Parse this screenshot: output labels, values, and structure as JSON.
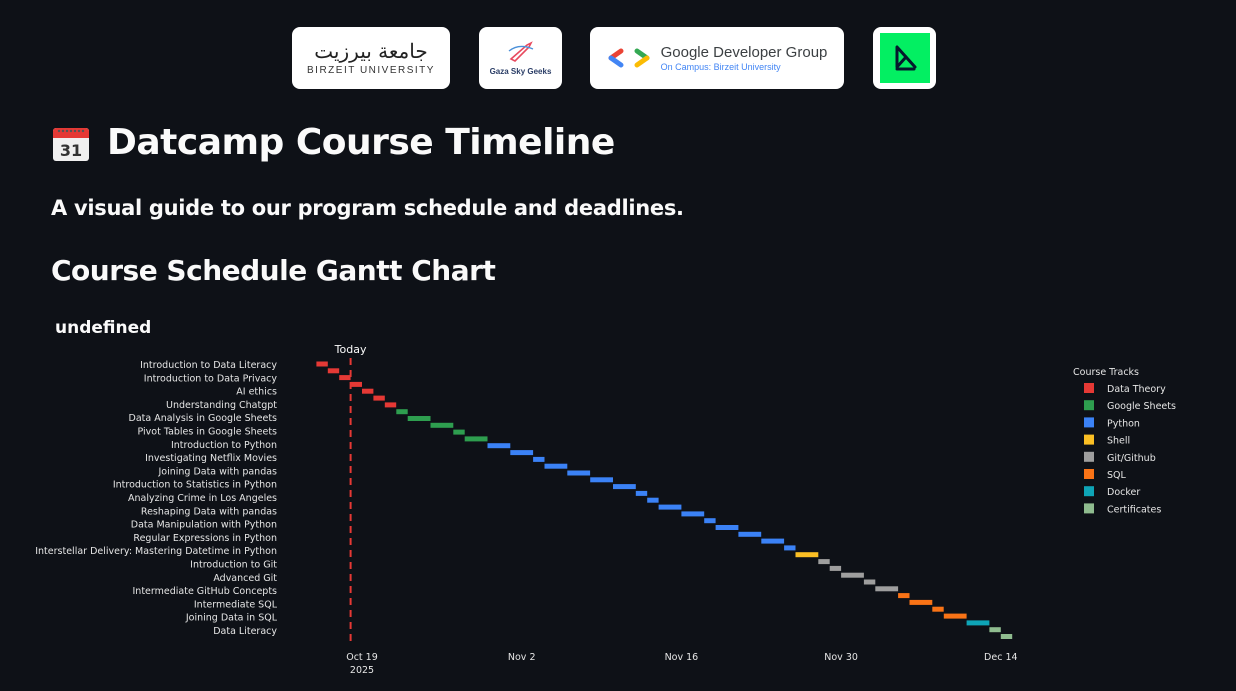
{
  "logos": {
    "birzeit": {
      "arabic": "جامعة بيرزيت",
      "english": "BIRZEIT UNIVERSITY"
    },
    "gsg": {
      "text": "Gaza Sky Geeks"
    },
    "gdg": {
      "title": "Google Developer Group",
      "subtitle": "On Campus: Birzeit University"
    },
    "datacamp": {
      "icon": "datacamp-logo-icon"
    }
  },
  "page": {
    "icon": "calendar-icon",
    "title": "Datcamp Course Timeline",
    "subtitle": "A visual guide to our program schedule and deadlines.",
    "section_heading": "Course Schedule Gantt Chart"
  },
  "colors": {
    "Data Theory": "#e53935",
    "Google Sheets": "#2e9e4f",
    "Python": "#3b82f6",
    "Shell": "#fbbf24",
    "Git/Github": "#9e9e9e",
    "SQL": "#f97316",
    "Docker": "#0ea5b7",
    "Certificates": "#8fbc8f"
  },
  "chart_data": {
    "type": "gantt",
    "title": "undefined",
    "legend_title": "Course Tracks",
    "legend_position": "right",
    "today_label": "Today",
    "today_date": "2025-10-18",
    "x_range": [
      "2025-10-14",
      "2025-12-17"
    ],
    "x_ticks": [
      {
        "date": "2025-10-19",
        "label": "Oct 19",
        "sublabel": "2025"
      },
      {
        "date": "2025-11-02",
        "label": "Nov 2",
        "sublabel": ""
      },
      {
        "date": "2025-11-16",
        "label": "Nov 16",
        "sublabel": ""
      },
      {
        "date": "2025-11-30",
        "label": "Nov 30",
        "sublabel": ""
      },
      {
        "date": "2025-12-14",
        "label": "Dec 14",
        "sublabel": ""
      }
    ],
    "y_labels": [
      "Introduction to Data Literacy",
      "Introduction to Data Privacy",
      "AI ethics",
      "Understanding Chatgpt",
      "Data Analysis in Google Sheets",
      "Pivot Tables in Google Sheets",
      "Introduction to Python",
      "Investigating Netflix Movies",
      "Joining Data with pandas",
      "Introduction to Statistics in Python",
      "Analyzing Crime in Los Angeles",
      "Reshaping Data with pandas",
      "Data Manipulation with Python",
      "Regular Expressions in Python",
      "Interstellar Delivery: Mastering Datetime in Python",
      "Introduction to Git",
      "Advanced Git",
      "Intermediate GitHub Concepts",
      "Intermediate SQL",
      "Joining Data in SQL",
      "Data Literacy"
    ],
    "tracks": [
      "Data Theory",
      "Google Sheets",
      "Python",
      "Shell",
      "Git/Github",
      "SQL",
      "Docker",
      "Certificates"
    ],
    "tasks": [
      {
        "label": "Introduction to Data Literacy",
        "track": "Data Theory",
        "start": "2025-10-15",
        "end": "2025-10-16"
      },
      {
        "label": "Introduction to Data Literacy",
        "track": "Data Theory",
        "start": "2025-10-16",
        "end": "2025-10-17"
      },
      {
        "label": "Introduction to Data Privacy",
        "track": "Data Theory",
        "start": "2025-10-17",
        "end": "2025-10-18"
      },
      {
        "label": "Introduction to Data Privacy",
        "track": "Data Theory",
        "start": "2025-10-18",
        "end": "2025-10-19"
      },
      {
        "label": "AI ethics",
        "track": "Data Theory",
        "start": "2025-10-19",
        "end": "2025-10-20"
      },
      {
        "label": "Understanding Chatgpt",
        "track": "Data Theory",
        "start": "2025-10-20",
        "end": "2025-10-21"
      },
      {
        "label": "Understanding Chatgpt",
        "track": "Data Theory",
        "start": "2025-10-21",
        "end": "2025-10-22"
      },
      {
        "label": "Data Analysis in Google Sheets",
        "track": "Google Sheets",
        "start": "2025-10-22",
        "end": "2025-10-23"
      },
      {
        "label": "Data Analysis in Google Sheets",
        "track": "Google Sheets",
        "start": "2025-10-23",
        "end": "2025-10-25"
      },
      {
        "label": "Pivot Tables in Google Sheets",
        "track": "Google Sheets",
        "start": "2025-10-25",
        "end": "2025-10-27"
      },
      {
        "label": "Pivot Tables in Google Sheets",
        "track": "Google Sheets",
        "start": "2025-10-27",
        "end": "2025-10-28"
      },
      {
        "label": "Introduction to Python",
        "track": "Google Sheets",
        "start": "2025-10-28",
        "end": "2025-10-30"
      },
      {
        "label": "Introduction to Python",
        "track": "Python",
        "start": "2025-10-30",
        "end": "2025-11-01"
      },
      {
        "label": "Investigating Netflix Movies",
        "track": "Python",
        "start": "2025-11-01",
        "end": "2025-11-03"
      },
      {
        "label": "Investigating Netflix Movies",
        "track": "Python",
        "start": "2025-11-03",
        "end": "2025-11-04"
      },
      {
        "label": "Joining Data with pandas",
        "track": "Python",
        "start": "2025-11-04",
        "end": "2025-11-06"
      },
      {
        "label": "Joining Data with pandas",
        "track": "Python",
        "start": "2025-11-06",
        "end": "2025-11-08"
      },
      {
        "label": "Introduction to Statistics in Python",
        "track": "Python",
        "start": "2025-11-08",
        "end": "2025-11-10"
      },
      {
        "label": "Introduction to Statistics in Python",
        "track": "Python",
        "start": "2025-11-10",
        "end": "2025-11-12"
      },
      {
        "label": "Analyzing Crime in Los Angeles",
        "track": "Python",
        "start": "2025-11-12",
        "end": "2025-11-13"
      },
      {
        "label": "Analyzing Crime in Los Angeles",
        "track": "Python",
        "start": "2025-11-13",
        "end": "2025-11-14"
      },
      {
        "label": "Reshaping Data with pandas",
        "track": "Python",
        "start": "2025-11-14",
        "end": "2025-11-16"
      },
      {
        "label": "Reshaping Data with pandas",
        "track": "Python",
        "start": "2025-11-16",
        "end": "2025-11-18"
      },
      {
        "label": "Data Manipulation with Python",
        "track": "Python",
        "start": "2025-11-18",
        "end": "2025-11-19"
      },
      {
        "label": "Data Manipulation with Python",
        "track": "Python",
        "start": "2025-11-19",
        "end": "2025-11-21"
      },
      {
        "label": "Regular Expressions in Python",
        "track": "Python",
        "start": "2025-11-21",
        "end": "2025-11-23"
      },
      {
        "label": "Regular Expressions in Python",
        "track": "Python",
        "start": "2025-11-23",
        "end": "2025-11-25"
      },
      {
        "label": "Interstellar Delivery: Mastering Datetime in Python",
        "track": "Python",
        "start": "2025-11-25",
        "end": "2025-11-26"
      },
      {
        "label": "Interstellar Delivery: Mastering Datetime in Python",
        "track": "Shell",
        "start": "2025-11-26",
        "end": "2025-11-28"
      },
      {
        "label": "Introduction to Git",
        "track": "Git/Github",
        "start": "2025-11-28",
        "end": "2025-11-29"
      },
      {
        "label": "Introduction to Git",
        "track": "Git/Github",
        "start": "2025-11-29",
        "end": "2025-11-30"
      },
      {
        "label": "Advanced Git",
        "track": "Git/Github",
        "start": "2025-11-30",
        "end": "2025-12-02"
      },
      {
        "label": "Advanced Git",
        "track": "Git/Github",
        "start": "2025-12-02",
        "end": "2025-12-03"
      },
      {
        "label": "Intermediate GitHub Concepts",
        "track": "Git/Github",
        "start": "2025-12-03",
        "end": "2025-12-05"
      },
      {
        "label": "Intermediate GitHub Concepts",
        "track": "SQL",
        "start": "2025-12-05",
        "end": "2025-12-06"
      },
      {
        "label": "Intermediate SQL",
        "track": "SQL",
        "start": "2025-12-06",
        "end": "2025-12-08"
      },
      {
        "label": "Intermediate SQL",
        "track": "SQL",
        "start": "2025-12-08",
        "end": "2025-12-09"
      },
      {
        "label": "Joining Data in SQL",
        "track": "SQL",
        "start": "2025-12-09",
        "end": "2025-12-11"
      },
      {
        "label": "Joining Data in SQL",
        "track": "Docker",
        "start": "2025-12-11",
        "end": "2025-12-13"
      },
      {
        "label": "Data Literacy",
        "track": "Certificates",
        "start": "2025-12-13",
        "end": "2025-12-14"
      },
      {
        "label": "Data Literacy",
        "track": "Certificates",
        "start": "2025-12-14",
        "end": "2025-12-15"
      }
    ]
  }
}
